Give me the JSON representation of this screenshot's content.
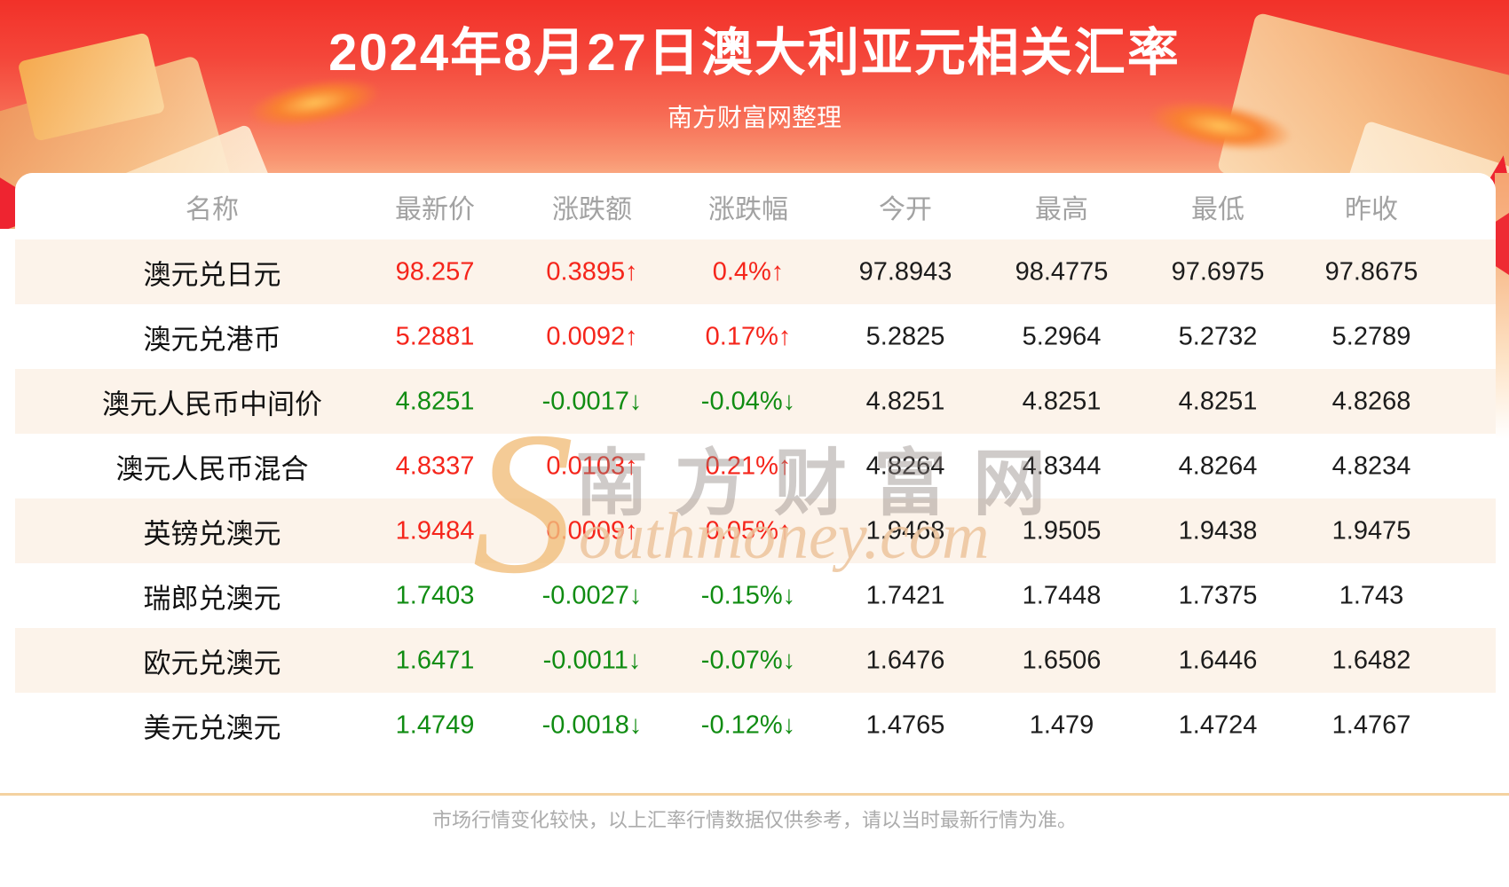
{
  "chart_data": {
    "type": "table",
    "title": "2024年8月27日澳大利亚元相关汇率",
    "subtitle": "南方财富网整理",
    "columns": [
      "名称",
      "最新价",
      "涨跌额",
      "涨跌幅",
      "今开",
      "最高",
      "最低",
      "昨收"
    ],
    "rows": [
      {
        "name": "澳元兑日元",
        "latest": "98.257",
        "change": "0.3895↑",
        "change_pct": "0.4%↑",
        "open": "97.8943",
        "high": "98.4775",
        "low": "97.6975",
        "prev_close": "97.8675",
        "trend": "up"
      },
      {
        "name": "澳元兑港币",
        "latest": "5.2881",
        "change": "0.0092↑",
        "change_pct": "0.17%↑",
        "open": "5.2825",
        "high": "5.2964",
        "low": "5.2732",
        "prev_close": "5.2789",
        "trend": "up"
      },
      {
        "name": "澳元人民币中间价",
        "latest": "4.8251",
        "change": "-0.0017↓",
        "change_pct": "-0.04%↓",
        "open": "4.8251",
        "high": "4.8251",
        "low": "4.8251",
        "prev_close": "4.8268",
        "trend": "down"
      },
      {
        "name": "澳元人民币混合",
        "latest": "4.8337",
        "change": "0.0103↑",
        "change_pct": "0.21%↑",
        "open": "4.8264",
        "high": "4.8344",
        "low": "4.8264",
        "prev_close": "4.8234",
        "trend": "up"
      },
      {
        "name": "英镑兑澳元",
        "latest": "1.9484",
        "change": "0.0009↑",
        "change_pct": "0.05%↑",
        "open": "1.9468",
        "high": "1.9505",
        "low": "1.9438",
        "prev_close": "1.9475",
        "trend": "up"
      },
      {
        "name": "瑞郎兑澳元",
        "latest": "1.7403",
        "change": "-0.0027↓",
        "change_pct": "-0.15%↓",
        "open": "1.7421",
        "high": "1.7448",
        "low": "1.7375",
        "prev_close": "1.743",
        "trend": "down"
      },
      {
        "name": "欧元兑澳元",
        "latest": "1.6471",
        "change": "-0.0011↓",
        "change_pct": "-0.07%↓",
        "open": "1.6476",
        "high": "1.6506",
        "low": "1.6446",
        "prev_close": "1.6482",
        "trend": "down"
      },
      {
        "name": "美元兑澳元",
        "latest": "1.4749",
        "change": "-0.0018↓",
        "change_pct": "-0.12%↓",
        "open": "1.4765",
        "high": "1.479",
        "low": "1.4724",
        "prev_close": "1.4767",
        "trend": "down"
      }
    ],
    "legend_position": "none",
    "grid": false
  },
  "watermark": {
    "initial": "S",
    "script": "outhmoney.com",
    "cn": "南方财富网"
  },
  "footer": {
    "note": "市场行情变化较快，以上汇率行情数据仅供参考，请以当时最新行情为准。"
  },
  "colors": {
    "up": "#f5251b",
    "down": "#108c12",
    "banner_red": "#f23129",
    "row_alt": "#fcf3ea",
    "divider": "#f4d2a0"
  }
}
